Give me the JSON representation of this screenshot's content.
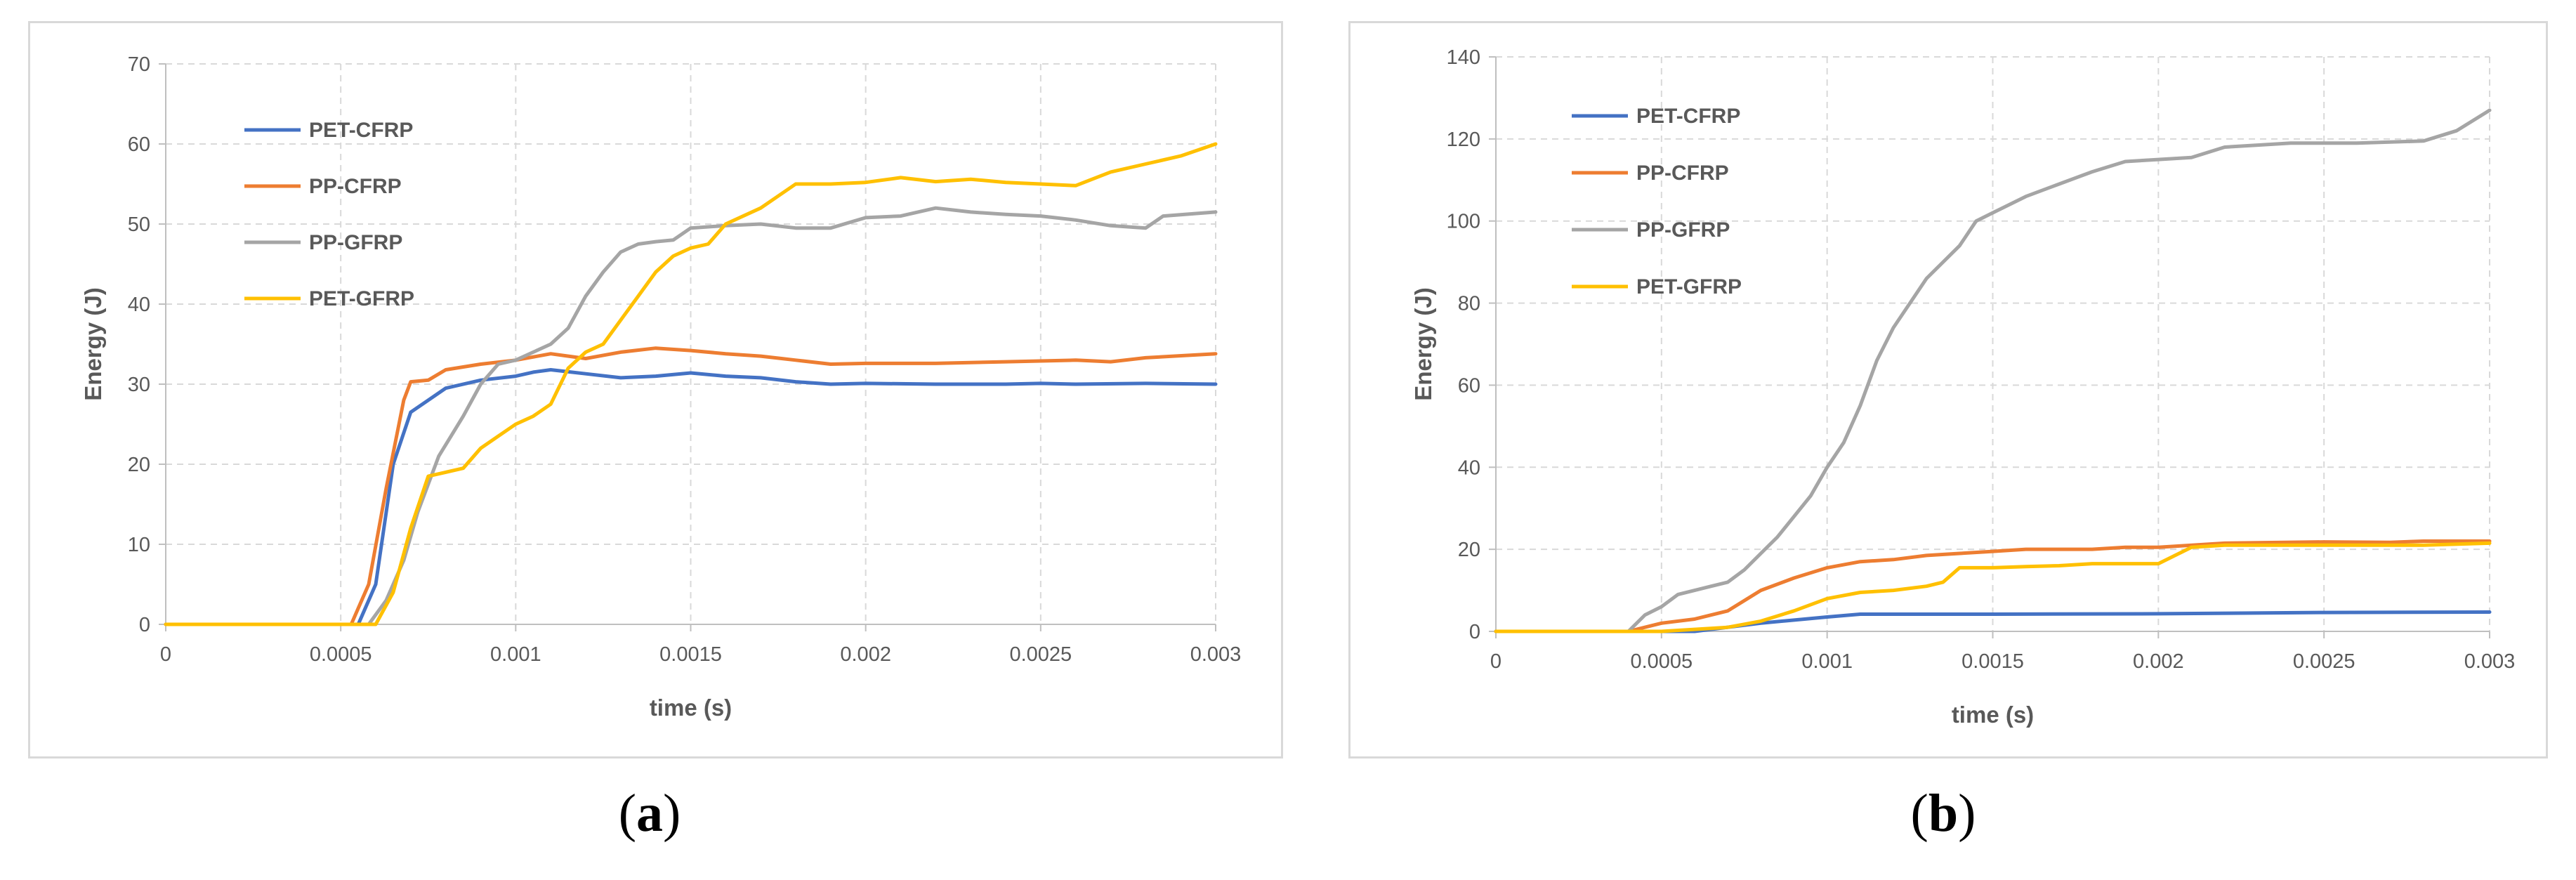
{
  "captions": {
    "a_open": "(",
    "a_letter": "a",
    "a_close": ")",
    "b_open": "(",
    "b_letter": "b",
    "b_close": ")"
  },
  "chart_data": [
    {
      "id": "a",
      "type": "line",
      "title": "",
      "xlabel": "time (s)",
      "ylabel": "Energy (J)",
      "xlim": [
        0,
        0.003
      ],
      "ylim": [
        0,
        70
      ],
      "xticks": [
        0,
        0.0005,
        0.001,
        0.0015,
        0.002,
        0.0025,
        0.003
      ],
      "xtick_labels": [
        "0",
        "0.0005",
        "0.001",
        "0.0015",
        "0.002",
        "0.0025",
        "0.003"
      ],
      "yticks": [
        0,
        10,
        20,
        30,
        40,
        50,
        60,
        70
      ],
      "ytick_labels": [
        "0",
        "10",
        "20",
        "30",
        "40",
        "50",
        "60",
        "70"
      ],
      "grid": true,
      "legend_position": "top-left",
      "series": [
        {
          "name": "PET-CFRP",
          "color": "#4472C4",
          "points": [
            [
              0,
              0
            ],
            [
              0.00055,
              0
            ],
            [
              0.0006,
              5
            ],
            [
              0.00065,
              20
            ],
            [
              0.0007,
              26.5
            ],
            [
              0.00075,
              28
            ],
            [
              0.0008,
              29.5
            ],
            [
              0.0009,
              30.5
            ],
            [
              0.001,
              31
            ],
            [
              0.00105,
              31.5
            ],
            [
              0.0011,
              31.8
            ],
            [
              0.0012,
              31.3
            ],
            [
              0.0013,
              30.8
            ],
            [
              0.0014,
              31
            ],
            [
              0.0015,
              31.4
            ],
            [
              0.0016,
              31
            ],
            [
              0.0017,
              30.8
            ],
            [
              0.0018,
              30.3
            ],
            [
              0.0019,
              30
            ],
            [
              0.002,
              30.1
            ],
            [
              0.0022,
              30
            ],
            [
              0.0024,
              30
            ],
            [
              0.0025,
              30.1
            ],
            [
              0.0026,
              30
            ],
            [
              0.0028,
              30.1
            ],
            [
              0.003,
              30
            ]
          ]
        },
        {
          "name": "PP-CFRP",
          "color": "#ED7D31",
          "points": [
            [
              0,
              0
            ],
            [
              0.00053,
              0
            ],
            [
              0.00058,
              5
            ],
            [
              0.00063,
              17
            ],
            [
              0.00068,
              28
            ],
            [
              0.0007,
              30.3
            ],
            [
              0.00075,
              30.5
            ],
            [
              0.0008,
              31.8
            ],
            [
              0.0009,
              32.5
            ],
            [
              0.001,
              33
            ],
            [
              0.0011,
              33.8
            ],
            [
              0.0012,
              33.2
            ],
            [
              0.0013,
              34
            ],
            [
              0.0014,
              34.5
            ],
            [
              0.0015,
              34.2
            ],
            [
              0.0016,
              33.8
            ],
            [
              0.0017,
              33.5
            ],
            [
              0.0018,
              33
            ],
            [
              0.0019,
              32.5
            ],
            [
              0.002,
              32.6
            ],
            [
              0.0022,
              32.6
            ],
            [
              0.0024,
              32.8
            ],
            [
              0.0026,
              33
            ],
            [
              0.0027,
              32.8
            ],
            [
              0.0028,
              33.3
            ],
            [
              0.003,
              33.8
            ]
          ]
        },
        {
          "name": "PP-GFRP",
          "color": "#A5A5A5",
          "points": [
            [
              0,
              0
            ],
            [
              0.00058,
              0
            ],
            [
              0.00063,
              3
            ],
            [
              0.00068,
              8
            ],
            [
              0.00072,
              14
            ],
            [
              0.00078,
              21
            ],
            [
              0.00085,
              26
            ],
            [
              0.0009,
              30
            ],
            [
              0.00095,
              32.5
            ],
            [
              0.001,
              33
            ],
            [
              0.00105,
              34
            ],
            [
              0.0011,
              35
            ],
            [
              0.00115,
              37
            ],
            [
              0.0012,
              41
            ],
            [
              0.00125,
              44
            ],
            [
              0.0013,
              46.5
            ],
            [
              0.00135,
              47.5
            ],
            [
              0.0014,
              47.8
            ],
            [
              0.00145,
              48
            ],
            [
              0.0015,
              49.5
            ],
            [
              0.0016,
              49.8
            ],
            [
              0.0017,
              50
            ],
            [
              0.0018,
              49.5
            ],
            [
              0.0019,
              49.5
            ],
            [
              0.002,
              50.8
            ],
            [
              0.0021,
              51
            ],
            [
              0.0022,
              52
            ],
            [
              0.0023,
              51.5
            ],
            [
              0.0024,
              51.2
            ],
            [
              0.0025,
              51
            ],
            [
              0.0026,
              50.5
            ],
            [
              0.0027,
              49.8
            ],
            [
              0.0028,
              49.5
            ],
            [
              0.00285,
              51
            ],
            [
              0.003,
              51.5
            ]
          ]
        },
        {
          "name": "PET-GFRP",
          "color": "#FFC000",
          "points": [
            [
              0,
              0
            ],
            [
              0.0006,
              0
            ],
            [
              0.00065,
              4
            ],
            [
              0.0007,
              12
            ],
            [
              0.00075,
              18.5
            ],
            [
              0.0008,
              19
            ],
            [
              0.00085,
              19.5
            ],
            [
              0.0009,
              22
            ],
            [
              0.00095,
              23.5
            ],
            [
              0.001,
              25
            ],
            [
              0.00105,
              26
            ],
            [
              0.0011,
              27.5
            ],
            [
              0.00115,
              32
            ],
            [
              0.0012,
              34
            ],
            [
              0.00125,
              35
            ],
            [
              0.0013,
              38
            ],
            [
              0.00135,
              41
            ],
            [
              0.0014,
              44
            ],
            [
              0.00145,
              46
            ],
            [
              0.0015,
              47
            ],
            [
              0.00155,
              47.5
            ],
            [
              0.0016,
              50
            ],
            [
              0.0017,
              52
            ],
            [
              0.0018,
              55
            ],
            [
              0.0019,
              55
            ],
            [
              0.002,
              55.2
            ],
            [
              0.0021,
              55.8
            ],
            [
              0.0022,
              55.3
            ],
            [
              0.0023,
              55.6
            ],
            [
              0.0024,
              55.2
            ],
            [
              0.0025,
              55
            ],
            [
              0.0026,
              54.8
            ],
            [
              0.0027,
              56.5
            ],
            [
              0.0028,
              57.5
            ],
            [
              0.0029,
              58.5
            ],
            [
              0.003,
              60
            ]
          ]
        }
      ]
    },
    {
      "id": "b",
      "type": "line",
      "title": "",
      "xlabel": "time (s)",
      "ylabel": "Energy (J)",
      "xlim": [
        0,
        0.003
      ],
      "ylim": [
        0,
        140
      ],
      "xticks": [
        0,
        0.0005,
        0.001,
        0.0015,
        0.002,
        0.0025,
        0.003
      ],
      "xtick_labels": [
        "0",
        "0.0005",
        "0.001",
        "0.0015",
        "0.002",
        "0.0025",
        "0.003"
      ],
      "yticks": [
        0,
        20,
        40,
        60,
        80,
        100,
        120,
        140
      ],
      "ytick_labels": [
        "0",
        "20",
        "40",
        "60",
        "80",
        "100",
        "120",
        "140"
      ],
      "grid": true,
      "legend_position": "top-left",
      "series": [
        {
          "name": "PET-CFRP",
          "color": "#4472C4",
          "points": [
            [
              0,
              0
            ],
            [
              0.0006,
              0
            ],
            [
              0.0008,
              2
            ],
            [
              0.001,
              3.5
            ],
            [
              0.0011,
              4.2
            ],
            [
              0.0015,
              4.2
            ],
            [
              0.002,
              4.3
            ],
            [
              0.0025,
              4.6
            ],
            [
              0.003,
              4.7
            ]
          ]
        },
        {
          "name": "PP-CFRP",
          "color": "#ED7D31",
          "points": [
            [
              0,
              0
            ],
            [
              0.0004,
              0
            ],
            [
              0.0005,
              2
            ],
            [
              0.0006,
              3
            ],
            [
              0.0007,
              5
            ],
            [
              0.0008,
              10
            ],
            [
              0.0009,
              13
            ],
            [
              0.001,
              15.5
            ],
            [
              0.0011,
              17
            ],
            [
              0.0012,
              17.5
            ],
            [
              0.0013,
              18.5
            ],
            [
              0.0014,
              19
            ],
            [
              0.0015,
              19.5
            ],
            [
              0.0016,
              20
            ],
            [
              0.0018,
              20
            ],
            [
              0.0019,
              20.5
            ],
            [
              0.002,
              20.5
            ],
            [
              0.0022,
              21.5
            ],
            [
              0.0025,
              21.8
            ],
            [
              0.0027,
              21.7
            ],
            [
              0.0028,
              22
            ],
            [
              0.003,
              22
            ]
          ]
        },
        {
          "name": "PP-GFRP",
          "color": "#A5A5A5",
          "points": [
            [
              0,
              0
            ],
            [
              0.0004,
              0
            ],
            [
              0.00045,
              4
            ],
            [
              0.0005,
              6
            ],
            [
              0.00055,
              9
            ],
            [
              0.0006,
              10
            ],
            [
              0.00065,
              11
            ],
            [
              0.0007,
              12
            ],
            [
              0.00075,
              15
            ],
            [
              0.0008,
              19
            ],
            [
              0.00085,
              23
            ],
            [
              0.0009,
              28
            ],
            [
              0.00095,
              33
            ],
            [
              0.001,
              40
            ],
            [
              0.00105,
              46
            ],
            [
              0.0011,
              55
            ],
            [
              0.00115,
              66
            ],
            [
              0.0012,
              74
            ],
            [
              0.00125,
              80
            ],
            [
              0.0013,
              86
            ],
            [
              0.00135,
              90
            ],
            [
              0.0014,
              94
            ],
            [
              0.00145,
              100
            ],
            [
              0.0015,
              102
            ],
            [
              0.0016,
              106
            ],
            [
              0.0017,
              109
            ],
            [
              0.0018,
              112
            ],
            [
              0.0019,
              114.5
            ],
            [
              0.002,
              115
            ],
            [
              0.0021,
              115.5
            ],
            [
              0.0022,
              118
            ],
            [
              0.0023,
              118.5
            ],
            [
              0.0024,
              119
            ],
            [
              0.0026,
              119
            ],
            [
              0.0028,
              119.5
            ],
            [
              0.0029,
              122
            ],
            [
              0.003,
              127
            ]
          ]
        },
        {
          "name": "PET-GFRP",
          "color": "#FFC000",
          "points": [
            [
              0,
              0
            ],
            [
              0.0005,
              0
            ],
            [
              0.0006,
              0.5
            ],
            [
              0.0007,
              1
            ],
            [
              0.0008,
              2.5
            ],
            [
              0.0009,
              5
            ],
            [
              0.001,
              8
            ],
            [
              0.0011,
              9.5
            ],
            [
              0.0012,
              10
            ],
            [
              0.0013,
              11
            ],
            [
              0.00135,
              12
            ],
            [
              0.0014,
              15.5
            ],
            [
              0.0015,
              15.5
            ],
            [
              0.0016,
              15.8
            ],
            [
              0.0017,
              16
            ],
            [
              0.0018,
              16.5
            ],
            [
              0.0019,
              16.5
            ],
            [
              0.002,
              16.5
            ],
            [
              0.0021,
              20.5
            ],
            [
              0.0022,
              21
            ],
            [
              0.0025,
              21
            ],
            [
              0.0028,
              21
            ],
            [
              0.003,
              21.5
            ]
          ]
        }
      ]
    }
  ]
}
